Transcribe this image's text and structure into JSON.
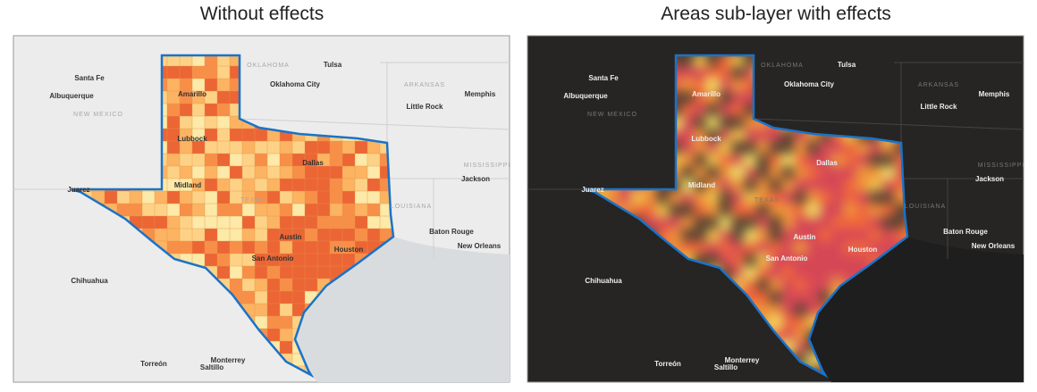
{
  "titles": [
    "Without effects",
    "Areas sub-layer with effects"
  ],
  "place_labels": [
    "Santa Fe",
    "Albuquerque",
    "NEW MEXICO",
    "OKLAHOMA",
    "Oklahoma City",
    "Tulsa",
    "ARKANSAS",
    "Little Rock",
    "Memphis",
    "Amarillo",
    "Lubbock",
    "Dallas",
    "Midland",
    "Juarez",
    "TEXAS",
    "Austin",
    "San Antonio",
    "Houston",
    "LOUISIANA",
    "MISSISSIPPI",
    "Jackson",
    "Baton Rouge",
    "New Orleans",
    "Chihuahua",
    "Torreón",
    "Monterrey",
    "Saltillo"
  ]
}
